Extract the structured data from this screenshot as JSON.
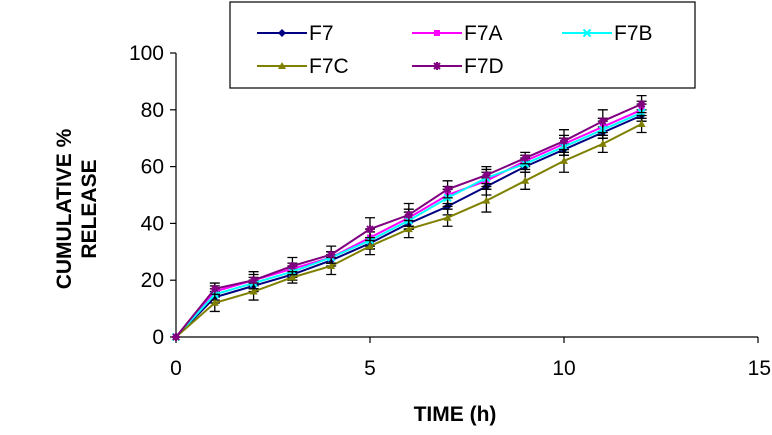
{
  "chart_data": {
    "type": "line",
    "title": "",
    "xlabel": "TIME (h)",
    "ylabel_lines": [
      "CUMULATIVE %",
      "RELEASE"
    ],
    "xlim": [
      0,
      15
    ],
    "ylim": [
      0,
      100
    ],
    "xticks": [
      0,
      5,
      10,
      15
    ],
    "yticks": [
      0,
      20,
      40,
      60,
      80,
      100
    ],
    "grid": false,
    "legend_position": "top",
    "x": [
      0,
      1,
      2,
      3,
      4,
      5,
      6,
      7,
      8,
      9,
      10,
      11,
      12
    ],
    "series": [
      {
        "name": "F7",
        "color": "#000080",
        "marker": "diamond",
        "values": [
          0,
          14,
          18,
          22,
          27,
          33,
          40,
          46,
          53,
          60,
          66,
          72,
          78
        ],
        "errors": [
          0,
          2,
          2,
          2,
          2,
          2,
          2,
          3,
          3,
          2,
          2,
          2,
          2
        ]
      },
      {
        "name": "F7A",
        "color": "#ff00ff",
        "marker": "square",
        "values": [
          0,
          16,
          20,
          24,
          28,
          35,
          42,
          50,
          55,
          62,
          68,
          74,
          80
        ],
        "errors": [
          0,
          2,
          2,
          2,
          2,
          3,
          3,
          3,
          3,
          2,
          3,
          3,
          3
        ]
      },
      {
        "name": "F7B",
        "color": "#00ffff",
        "marker": "x",
        "values": [
          0,
          15,
          19,
          23,
          28,
          34,
          41,
          49,
          56,
          61,
          67,
          73,
          79
        ],
        "errors": [
          0,
          2,
          2,
          2,
          2,
          3,
          3,
          3,
          3,
          2,
          3,
          3,
          3
        ]
      },
      {
        "name": "F7C",
        "color": "#808000",
        "marker": "triangle",
        "values": [
          0,
          12,
          16,
          21,
          25,
          32,
          38,
          42,
          48,
          55,
          62,
          68,
          75
        ],
        "errors": [
          0,
          3,
          3,
          2,
          3,
          3,
          3,
          3,
          4,
          3,
          4,
          3,
          3
        ]
      },
      {
        "name": "F7D",
        "color": "#800080",
        "marker": "star",
        "values": [
          0,
          17,
          20,
          25,
          29,
          38,
          43,
          52,
          57,
          63,
          69,
          76,
          82
        ],
        "errors": [
          0,
          2,
          3,
          3,
          3,
          4,
          4,
          3,
          3,
          2,
          4,
          4,
          3
        ]
      }
    ]
  }
}
